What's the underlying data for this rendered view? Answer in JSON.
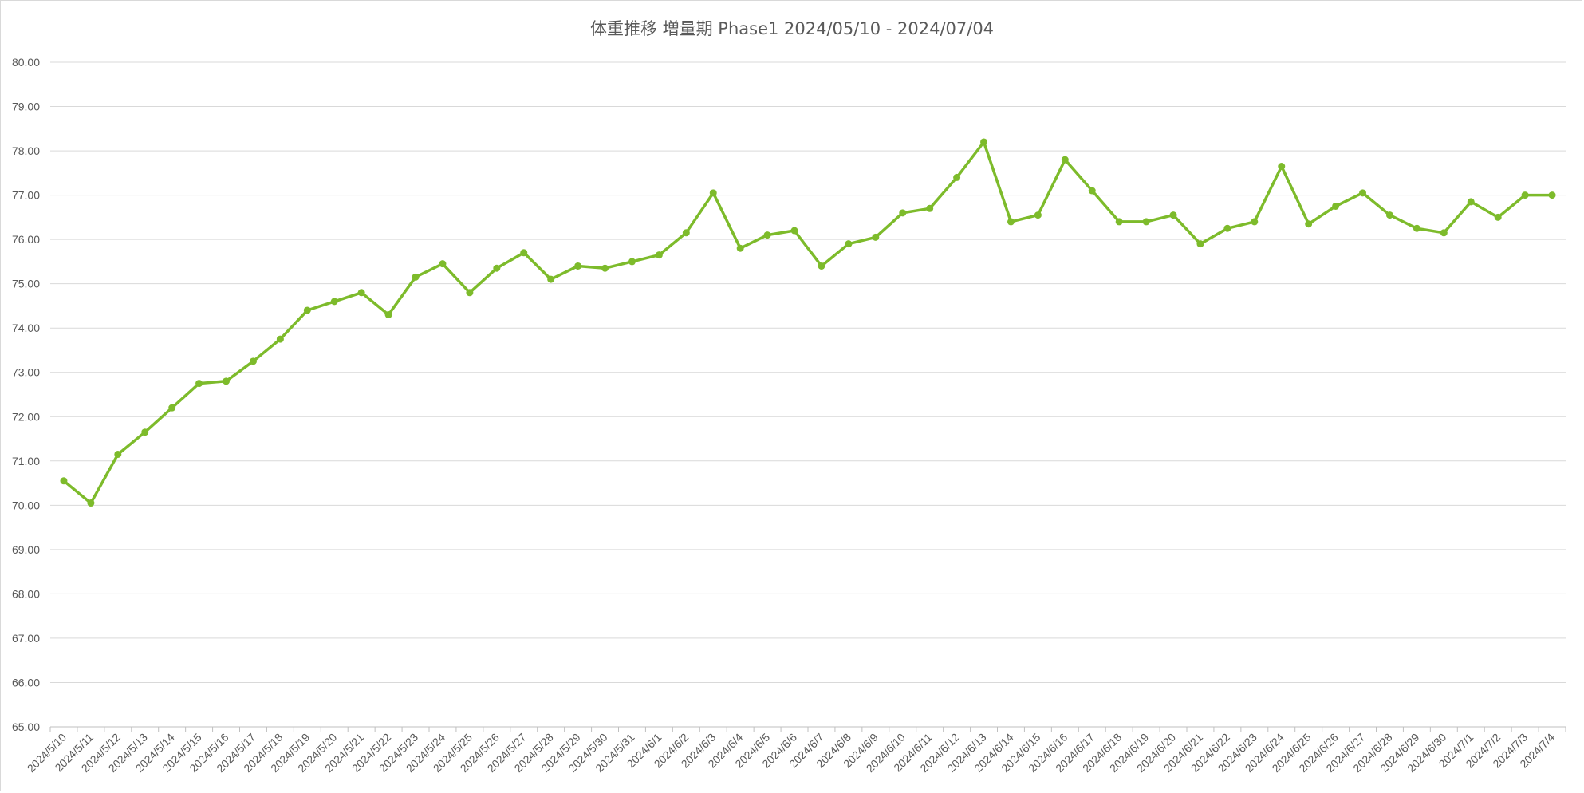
{
  "chart_data": {
    "type": "line",
    "title": "体重推移 増量期 Phase1 2024/05/10 - 2024/07/04",
    "xlabel": "",
    "ylabel": "",
    "ylim": [
      65,
      80
    ],
    "ytick_step": 1,
    "ytick_labels": [
      "65.00",
      "66.00",
      "67.00",
      "68.00",
      "69.00",
      "70.00",
      "71.00",
      "72.00",
      "73.00",
      "74.00",
      "75.00",
      "76.00",
      "77.00",
      "78.00",
      "79.00",
      "80.00"
    ],
    "grid": true,
    "legend": "none",
    "line_color": "#7dbb2b",
    "categories": [
      "2024/5/10",
      "2024/5/11",
      "2024/5/12",
      "2024/5/13",
      "2024/5/14",
      "2024/5/15",
      "2024/5/16",
      "2024/5/17",
      "2024/5/18",
      "2024/5/19",
      "2024/5/20",
      "2024/5/21",
      "2024/5/22",
      "2024/5/23",
      "2024/5/24",
      "2024/5/25",
      "2024/5/26",
      "2024/5/27",
      "2024/5/28",
      "2024/5/29",
      "2024/5/30",
      "2024/5/31",
      "2024/6/1",
      "2024/6/2",
      "2024/6/3",
      "2024/6/4",
      "2024/6/5",
      "2024/6/6",
      "2024/6/7",
      "2024/6/8",
      "2024/6/9",
      "2024/6/10",
      "2024/6/11",
      "2024/6/12",
      "2024/6/13",
      "2024/6/14",
      "2024/6/15",
      "2024/6/16",
      "2024/6/17",
      "2024/6/18",
      "2024/6/19",
      "2024/6/20",
      "2024/6/21",
      "2024/6/22",
      "2024/6/23",
      "2024/6/24",
      "2024/6/25",
      "2024/6/26",
      "2024/6/27",
      "2024/6/28",
      "2024/6/29",
      "2024/6/30",
      "2024/7/1",
      "2024/7/2",
      "2024/7/3",
      "2024/7/4"
    ],
    "values": [
      70.55,
      70.05,
      71.15,
      71.65,
      72.2,
      72.75,
      72.8,
      73.25,
      73.75,
      74.4,
      74.6,
      74.8,
      74.3,
      75.15,
      75.45,
      74.8,
      75.35,
      75.7,
      75.1,
      75.4,
      75.35,
      75.5,
      75.65,
      76.15,
      77.05,
      75.8,
      76.1,
      76.2,
      75.4,
      75.9,
      76.05,
      76.6,
      76.7,
      77.4,
      78.2,
      76.4,
      76.55,
      77.8,
      77.1,
      76.4,
      76.4,
      76.55,
      75.9,
      76.25,
      76.4,
      77.65,
      76.35,
      76.75,
      77.05,
      76.55,
      76.25,
      76.15,
      76.85,
      76.5,
      77.0,
      77.0
    ]
  }
}
